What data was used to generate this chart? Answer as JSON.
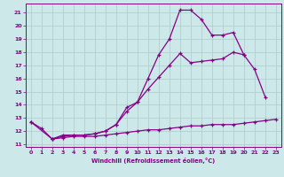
{
  "xlabel": "Windchill (Refroidissement éolien,°C)",
  "background_color": "#cce8e8",
  "grid_color": "#aacccc",
  "line_color": "#880088",
  "xlim": [
    -0.5,
    23.5
  ],
  "ylim": [
    10.8,
    21.7
  ],
  "yticks": [
    11,
    12,
    13,
    14,
    15,
    16,
    17,
    18,
    19,
    20,
    21
  ],
  "xticks": [
    0,
    1,
    2,
    3,
    4,
    5,
    6,
    7,
    8,
    9,
    10,
    11,
    12,
    13,
    14,
    15,
    16,
    17,
    18,
    19,
    20,
    21,
    22,
    23
  ],
  "series": [
    {
      "x": [
        0,
        1,
        2,
        3,
        4,
        5,
        6,
        7,
        8,
        9,
        10,
        11,
        12,
        13,
        14,
        15,
        16,
        17,
        18,
        19,
        20
      ],
      "y": [
        12.7,
        12.2,
        11.4,
        11.7,
        11.7,
        11.7,
        11.8,
        12.0,
        12.5,
        13.8,
        14.2,
        16.0,
        17.8,
        19.0,
        21.2,
        21.2,
        20.5,
        19.3,
        19.3,
        19.5,
        17.8
      ]
    },
    {
      "x": [
        0,
        2,
        3,
        4,
        5,
        6,
        7,
        8,
        9,
        10,
        11,
        12,
        13,
        14,
        15,
        16,
        17,
        18,
        19,
        20,
        21,
        22
      ],
      "y": [
        12.7,
        11.4,
        11.6,
        11.7,
        11.7,
        11.8,
        12.0,
        12.5,
        13.5,
        14.2,
        15.2,
        16.1,
        17.0,
        17.9,
        17.2,
        17.3,
        17.4,
        17.5,
        18.0,
        17.8,
        16.7,
        14.6
      ]
    },
    {
      "x": [
        2,
        3,
        4,
        5,
        6,
        7,
        8,
        9,
        10,
        11,
        12,
        13,
        14,
        15,
        16,
        17,
        18,
        19,
        20,
        21,
        22,
        23
      ],
      "y": [
        11.4,
        11.5,
        11.6,
        11.6,
        11.6,
        11.7,
        11.8,
        11.9,
        12.0,
        12.1,
        12.1,
        12.2,
        12.3,
        12.4,
        12.4,
        12.5,
        12.5,
        12.5,
        12.6,
        12.7,
        12.8,
        12.9
      ]
    }
  ]
}
